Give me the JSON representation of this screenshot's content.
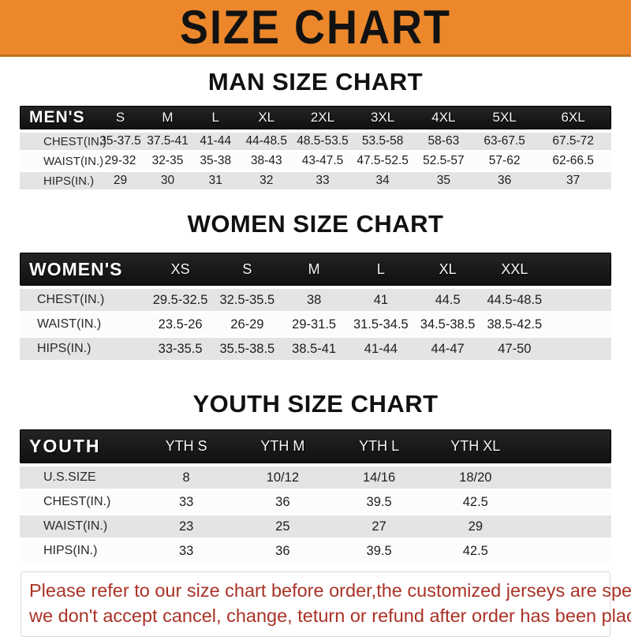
{
  "banner": {
    "title": "SIZE CHART"
  },
  "colors": {
    "banner_orange": "#EC882B",
    "header_black": "#181818",
    "row_gray": "#E4E4E4",
    "disclaimer_red": "#A93226"
  },
  "sections": [
    {
      "heading": "MAN SIZE CHART",
      "table": {
        "label": "MEN'S",
        "columns": [
          "S",
          "M",
          "L",
          "XL",
          "2XL",
          "3XL",
          "4XL",
          "5XL",
          "6XL"
        ],
        "rows": [
          {
            "label": "CHEST(IN.)",
            "values": [
              "35-37.5",
              "37.5-41",
              "41-44",
              "44-48.5",
              "48.5-53.5",
              "53.5-58",
              "58-63",
              "63-67.5",
              "67.5-72"
            ]
          },
          {
            "label": "WAIST(IN.)",
            "values": [
              "29-32",
              "32-35",
              "35-38",
              "38-43",
              "43-47.5",
              "47.5-52.5",
              "52.5-57",
              "57-62",
              "62-66.5"
            ]
          },
          {
            "label": "HIPS(IN.)",
            "values": [
              "29",
              "30",
              "31",
              "32",
              "33",
              "34",
              "35",
              "36",
              "37"
            ]
          }
        ]
      }
    },
    {
      "heading": "WOMEN SIZE CHART",
      "table": {
        "label": "WOMEN'S",
        "columns": [
          "XS",
          "S",
          "M",
          "L",
          "XL",
          "XXL"
        ],
        "rows": [
          {
            "label": "CHEST(IN.)",
            "values": [
              "29.5-32.5",
              "32.5-35.5",
              "38",
              "41",
              "44.5",
              "44.5-48.5"
            ]
          },
          {
            "label": "WAIST(IN.)",
            "values": [
              "23.5-26",
              "26-29",
              "29-31.5",
              "31.5-34.5",
              "34.5-38.5",
              "38.5-42.5"
            ]
          },
          {
            "label": "HIPS(IN.)",
            "values": [
              "33-35.5",
              "35.5-38.5",
              "38.5-41",
              "41-44",
              "44-47",
              "47-50"
            ]
          }
        ]
      }
    },
    {
      "heading": "YOUTH SIZE CHART",
      "table": {
        "label": "YOUTH",
        "columns": [
          "YTH S",
          "YTH M",
          "YTH L",
          "YTH XL"
        ],
        "rows": [
          {
            "label": "U.S.SIZE",
            "values": [
              "8",
              "10/12",
              "14/16",
              "18/20"
            ]
          },
          {
            "label": "CHEST(IN.)",
            "values": [
              "33",
              "36",
              "39.5",
              "42.5"
            ]
          },
          {
            "label": "WAIST(IN.)",
            "values": [
              "23",
              "25",
              "27",
              "29"
            ]
          },
          {
            "label": "HIPS(IN.)",
            "values": [
              "33",
              "36",
              "39.5",
              "42.5"
            ]
          }
        ]
      }
    }
  ],
  "footer": {
    "line1": "Please refer to our size chart before order,the customized jerseys are special products,",
    "line2": "we don't accept cancel, change, teturn or refund after order has been placed!"
  }
}
